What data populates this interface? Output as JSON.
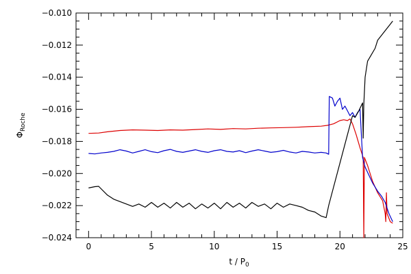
{
  "chart_data": {
    "type": "line",
    "title": "",
    "xlabel": {
      "main": "t / P",
      "sub": "0"
    },
    "ylabel": {
      "main": "Φ",
      "sub": "Roche"
    },
    "xlim": [
      -1,
      25
    ],
    "ylim": [
      -0.024,
      -0.01
    ],
    "x_ticks": [
      0,
      5,
      10,
      15,
      20,
      25
    ],
    "x_tick_labels": [
      "0",
      "5",
      "10",
      "15",
      "20",
      "25"
    ],
    "x_minor_step": 1,
    "y_ticks": [
      -0.024,
      -0.022,
      -0.02,
      -0.018,
      -0.016,
      -0.014,
      -0.012,
      -0.01
    ],
    "y_tick_labels": [
      "−0.024",
      "−0.022",
      "−0.020",
      "−0.018",
      "−0.016",
      "−0.014",
      "−0.012",
      "−0.010"
    ],
    "y_minor_step": 0.0005,
    "grid": false,
    "legend": "none",
    "series": [
      {
        "color": "#dd0000",
        "points": [
          [
            0.0,
            -0.0175
          ],
          [
            0.8,
            -0.01748
          ],
          [
            1.5,
            -0.0174
          ],
          [
            2.5,
            -0.01732
          ],
          [
            3.5,
            -0.01728
          ],
          [
            4.5,
            -0.0173
          ],
          [
            5.5,
            -0.01732
          ],
          [
            6.5,
            -0.01728
          ],
          [
            7.5,
            -0.0173
          ],
          [
            8.5,
            -0.01726
          ],
          [
            9.5,
            -0.01722
          ],
          [
            10.5,
            -0.01725
          ],
          [
            11.5,
            -0.0172
          ],
          [
            12.5,
            -0.01722
          ],
          [
            13.5,
            -0.01718
          ],
          [
            14.5,
            -0.01716
          ],
          [
            15.5,
            -0.01714
          ],
          [
            16.5,
            -0.01712
          ],
          [
            17.5,
            -0.01708
          ],
          [
            18.5,
            -0.01705
          ],
          [
            19.0,
            -0.017
          ],
          [
            19.5,
            -0.0169
          ],
          [
            20.0,
            -0.0167
          ],
          [
            20.3,
            -0.01665
          ],
          [
            20.6,
            -0.0167
          ],
          [
            20.8,
            -0.0166
          ],
          [
            21.0,
            -0.0169
          ],
          [
            21.3,
            -0.0176
          ],
          [
            21.6,
            -0.0184
          ],
          [
            21.85,
            -0.019
          ],
          [
            21.9,
            -0.024
          ],
          [
            21.95,
            -0.019
          ],
          [
            22.2,
            -0.0195
          ],
          [
            22.6,
            -0.0205
          ],
          [
            23.0,
            -0.0212
          ],
          [
            23.4,
            -0.0217
          ],
          [
            23.6,
            -0.0225
          ],
          [
            23.65,
            -0.023
          ],
          [
            23.7,
            -0.0212
          ],
          [
            23.75,
            -0.0225
          ],
          [
            24.0,
            -0.023
          ],
          [
            24.2,
            -0.0231
          ]
        ]
      },
      {
        "color": "#0000cc",
        "points": [
          [
            0.0,
            -0.01875
          ],
          [
            0.5,
            -0.01878
          ],
          [
            1.0,
            -0.01872
          ],
          [
            1.5,
            -0.01868
          ],
          [
            2.0,
            -0.01862
          ],
          [
            2.5,
            -0.01852
          ],
          [
            3.0,
            -0.0186
          ],
          [
            3.5,
            -0.01872
          ],
          [
            4.0,
            -0.01862
          ],
          [
            4.5,
            -0.01852
          ],
          [
            5.0,
            -0.01864
          ],
          [
            5.5,
            -0.0187
          ],
          [
            6.0,
            -0.01858
          ],
          [
            6.5,
            -0.0185
          ],
          [
            7.0,
            -0.01862
          ],
          [
            7.5,
            -0.01868
          ],
          [
            8.0,
            -0.0186
          ],
          [
            8.5,
            -0.01852
          ],
          [
            9.0,
            -0.01862
          ],
          [
            9.5,
            -0.01868
          ],
          [
            10.0,
            -0.01858
          ],
          [
            10.5,
            -0.01852
          ],
          [
            11.0,
            -0.01862
          ],
          [
            11.5,
            -0.01866
          ],
          [
            12.0,
            -0.01858
          ],
          [
            12.5,
            -0.0187
          ],
          [
            13.0,
            -0.0186
          ],
          [
            13.5,
            -0.01852
          ],
          [
            14.0,
            -0.0186
          ],
          [
            14.5,
            -0.01868
          ],
          [
            15.0,
            -0.01864
          ],
          [
            15.5,
            -0.01856
          ],
          [
            16.0,
            -0.01866
          ],
          [
            16.5,
            -0.01872
          ],
          [
            17.0,
            -0.01862
          ],
          [
            17.5,
            -0.01866
          ],
          [
            18.0,
            -0.01872
          ],
          [
            18.5,
            -0.01868
          ],
          [
            18.9,
            -0.01872
          ],
          [
            19.1,
            -0.0188
          ],
          [
            19.15,
            -0.0152
          ],
          [
            19.4,
            -0.0153
          ],
          [
            19.6,
            -0.0158
          ],
          [
            19.8,
            -0.0155
          ],
          [
            20.0,
            -0.0153
          ],
          [
            20.2,
            -0.016
          ],
          [
            20.4,
            -0.0158
          ],
          [
            20.6,
            -0.0161
          ],
          [
            20.8,
            -0.0164
          ],
          [
            21.0,
            -0.0162
          ],
          [
            21.2,
            -0.0165
          ],
          [
            21.4,
            -0.0162
          ],
          [
            21.6,
            -0.016
          ],
          [
            21.8,
            -0.019
          ],
          [
            22.0,
            -0.0196
          ],
          [
            22.3,
            -0.0201
          ],
          [
            22.6,
            -0.0206
          ],
          [
            23.0,
            -0.0211
          ],
          [
            23.3,
            -0.0214
          ],
          [
            23.6,
            -0.0218
          ],
          [
            23.9,
            -0.0225
          ],
          [
            24.2,
            -0.023
          ]
        ]
      },
      {
        "color": "#000000",
        "points": [
          [
            0.0,
            -0.0209
          ],
          [
            0.5,
            -0.02082
          ],
          [
            0.8,
            -0.0208
          ],
          [
            1.5,
            -0.02135
          ],
          [
            2.0,
            -0.0216
          ],
          [
            2.5,
            -0.02175
          ],
          [
            3.0,
            -0.0219
          ],
          [
            3.5,
            -0.02205
          ],
          [
            4.0,
            -0.0219
          ],
          [
            4.5,
            -0.0221
          ],
          [
            5.0,
            -0.0218
          ],
          [
            5.5,
            -0.0221
          ],
          [
            6.0,
            -0.02185
          ],
          [
            6.5,
            -0.02215
          ],
          [
            7.0,
            -0.0218
          ],
          [
            7.5,
            -0.0221
          ],
          [
            8.0,
            -0.02185
          ],
          [
            8.5,
            -0.0222
          ],
          [
            9.0,
            -0.0219
          ],
          [
            9.5,
            -0.02215
          ],
          [
            10.0,
            -0.02185
          ],
          [
            10.5,
            -0.0222
          ],
          [
            11.0,
            -0.0218
          ],
          [
            11.5,
            -0.0221
          ],
          [
            12.0,
            -0.02185
          ],
          [
            12.5,
            -0.02215
          ],
          [
            13.0,
            -0.0218
          ],
          [
            13.5,
            -0.02205
          ],
          [
            14.0,
            -0.0219
          ],
          [
            14.5,
            -0.0222
          ],
          [
            15.0,
            -0.02185
          ],
          [
            15.5,
            -0.0221
          ],
          [
            16.0,
            -0.0219
          ],
          [
            16.5,
            -0.022
          ],
          [
            17.0,
            -0.0221
          ],
          [
            17.5,
            -0.0223
          ],
          [
            18.0,
            -0.0224
          ],
          [
            18.5,
            -0.02265
          ],
          [
            18.9,
            -0.02275
          ],
          [
            19.1,
            -0.022
          ],
          [
            21.0,
            -0.0164
          ],
          [
            21.2,
            -0.0165
          ],
          [
            21.5,
            -0.0161
          ],
          [
            21.8,
            -0.0156
          ],
          [
            21.85,
            -0.0178
          ],
          [
            21.9,
            -0.0157
          ],
          [
            22.0,
            -0.014
          ],
          [
            22.2,
            -0.013
          ],
          [
            22.5,
            -0.0126
          ],
          [
            22.8,
            -0.0122
          ],
          [
            23.0,
            -0.0117
          ],
          [
            23.3,
            -0.0114
          ],
          [
            23.6,
            -0.0111
          ],
          [
            24.0,
            -0.0107
          ],
          [
            24.2,
            -0.0105
          ]
        ]
      }
    ]
  }
}
